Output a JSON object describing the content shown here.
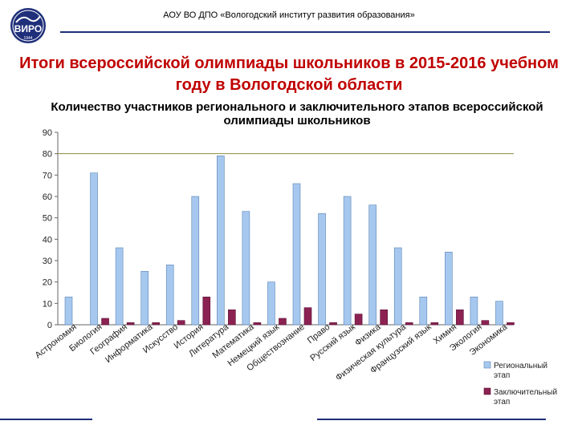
{
  "header": {
    "institution": "АОУ ВО ДПО «Вологодский институт развития образования»",
    "logo_text": "ВИРО",
    "logo_subtext": "1944"
  },
  "title": "Итоги всероссийской олимпиады школьников в 2015-2016 учебном году в Вологодской области",
  "colors": {
    "title": "#c00000",
    "regional": "#a6c8ef",
    "final": "#8b2252",
    "accent": "#1f2f7a",
    "reference_line": "#8b8b3c"
  },
  "chart_data": {
    "type": "bar",
    "title": "Количество участников регионального и заключительного этапов всероссийской олимпиады школьников",
    "categories": [
      "Астрономия",
      "Биология",
      "География",
      "Информатика",
      "Искусство",
      "История",
      "Литература",
      "Математика",
      "Немецкий язык",
      "Обществознание",
      "Право",
      "Русский язык",
      "Физика",
      "Физическая культура",
      "Французский язык",
      "Химия",
      "Экология",
      "Экономика"
    ],
    "series": [
      {
        "name": "Региональный этап",
        "values": [
          13,
          71,
          36,
          25,
          28,
          60,
          79,
          53,
          20,
          66,
          52,
          60,
          56,
          36,
          13,
          34,
          13,
          11
        ]
      },
      {
        "name": "Заключительный этап",
        "values": [
          0,
          3,
          1,
          1,
          2,
          13,
          7,
          1,
          3,
          8,
          1,
          5,
          7,
          1,
          1,
          7,
          2,
          1
        ]
      }
    ],
    "ylim": [
      0,
      90
    ],
    "yticks": [
      "0",
      "10",
      "20",
      "30",
      "40",
      "50",
      "60",
      "70",
      "80",
      "90"
    ],
    "reference_line": 80,
    "legend_position": "bottom-right"
  }
}
